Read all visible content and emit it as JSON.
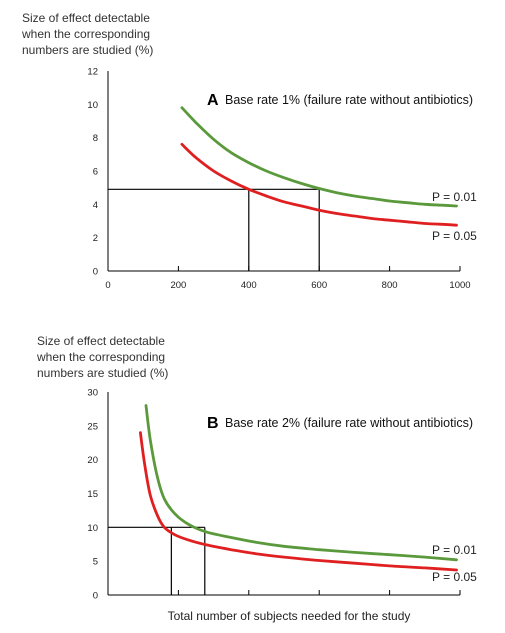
{
  "chart_data": [
    {
      "type": "line",
      "panel_letter": "A",
      "title": "Base rate 1% (failure rate without antibiotics)",
      "ylabel_lines": [
        "Size of effect detectable",
        "when the corresponding",
        "numbers are studied (%)"
      ],
      "xlabel": "",
      "xlim": [
        0,
        1000
      ],
      "ylim": [
        0,
        12
      ],
      "x_ticks": [
        0,
        200,
        400,
        600,
        800,
        1000
      ],
      "x_tick_labels": [
        "0",
        "200",
        "400",
        "600",
        "800",
        "1000"
      ],
      "y_ticks": [
        0,
        2,
        4,
        6,
        8,
        10,
        12
      ],
      "y_tick_labels": [
        "0",
        "2",
        "4",
        "6",
        "8",
        "10",
        "12"
      ],
      "grid": false,
      "series": [
        {
          "name": "P = 0.01",
          "color": "#5b9a3c",
          "x": [
            210,
            250,
            300,
            350,
            400,
            450,
            500,
            550,
            600,
            650,
            700,
            750,
            800,
            850,
            900,
            950,
            990
          ],
          "y": [
            9.8,
            8.9,
            7.9,
            7.1,
            6.5,
            6.0,
            5.6,
            5.25,
            4.95,
            4.7,
            4.5,
            4.35,
            4.2,
            4.1,
            4.0,
            3.95,
            3.9
          ]
        },
        {
          "name": "P = 0.05",
          "color": "#e02020",
          "x": [
            210,
            250,
            300,
            350,
            400,
            450,
            500,
            550,
            600,
            650,
            700,
            750,
            800,
            850,
            900,
            950,
            990
          ],
          "y": [
            7.6,
            6.8,
            6.0,
            5.4,
            4.9,
            4.5,
            4.15,
            3.9,
            3.65,
            3.45,
            3.3,
            3.15,
            3.05,
            2.95,
            2.85,
            2.8,
            2.75
          ]
        }
      ],
      "guide_lines": {
        "y_level": 4.9,
        "x_values": [
          400,
          600
        ]
      }
    },
    {
      "type": "line",
      "panel_letter": "B",
      "title": "Base rate 2% (failure rate without antibiotics)",
      "ylabel_lines": [
        "Size of effect detectable",
        "when the corresponding",
        "numbers are studied (%)"
      ],
      "xlabel": "Total number of subjects needed for the study",
      "xlim": [
        0,
        1000
      ],
      "ylim": [
        0,
        30
      ],
      "x_ticks": [
        200,
        400,
        600,
        800,
        1000
      ],
      "x_tick_labels": [],
      "y_ticks": [
        0,
        5,
        10,
        15,
        20,
        25,
        30
      ],
      "y_tick_labels": [
        "0",
        "5",
        "10",
        "15",
        "20",
        "25",
        "30"
      ],
      "grid": false,
      "series": [
        {
          "name": "P = 0.01",
          "color": "#5b9a3c",
          "x": [
            108,
            120,
            140,
            160,
            190,
            230,
            280,
            350,
            420,
            500,
            600,
            700,
            800,
            900,
            990
          ],
          "y": [
            28.0,
            23.0,
            17.5,
            14.2,
            12.0,
            10.4,
            9.3,
            8.5,
            7.8,
            7.2,
            6.7,
            6.3,
            5.95,
            5.6,
            5.2
          ]
        },
        {
          "name": "P = 0.05",
          "color": "#e02020",
          "x": [
            92,
            105,
            120,
            140,
            160,
            190,
            230,
            280,
            350,
            420,
            500,
            600,
            700,
            800,
            900,
            990
          ],
          "y": [
            24.0,
            19.0,
            14.8,
            11.8,
            10.0,
            8.9,
            8.1,
            7.4,
            6.7,
            6.1,
            5.6,
            5.1,
            4.7,
            4.3,
            4.0,
            3.7
          ]
        }
      ],
      "guide_lines": {
        "y_level": 10,
        "x_values": [
          180,
          275
        ]
      }
    }
  ]
}
